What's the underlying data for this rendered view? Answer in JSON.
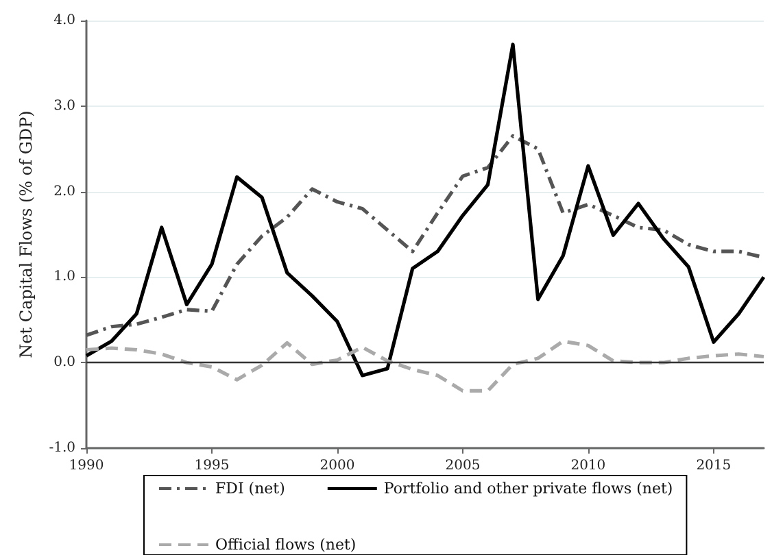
{
  "chart_data": {
    "type": "line",
    "ylabel": "Net Capital Flows (% of GDP)",
    "x": [
      1990,
      1991,
      1992,
      1993,
      1994,
      1995,
      1996,
      1997,
      1998,
      1999,
      2000,
      2001,
      2002,
      2003,
      2004,
      2005,
      2006,
      2007,
      2008,
      2009,
      2010,
      2011,
      2012,
      2013,
      2014,
      2015,
      2016,
      2017
    ],
    "series": [
      {
        "name": "FDI (net)",
        "color": "#555555",
        "line_style": "dashdot",
        "values": [
          0.32,
          0.42,
          0.45,
          0.53,
          0.62,
          0.6,
          1.15,
          1.48,
          1.7,
          2.03,
          1.88,
          1.8,
          1.55,
          1.3,
          1.75,
          2.18,
          2.28,
          2.65,
          2.5,
          1.75,
          1.85,
          1.72,
          1.58,
          1.55,
          1.38,
          1.3,
          1.3,
          1.23
        ]
      },
      {
        "name": "Portfolio and other private flows (net)",
        "color": "#000000",
        "line_style": "solid",
        "values": [
          0.08,
          0.25,
          0.57,
          1.58,
          0.68,
          1.15,
          2.17,
          1.93,
          1.05,
          0.78,
          0.48,
          -0.15,
          -0.07,
          1.1,
          1.3,
          1.72,
          2.08,
          3.72,
          0.74,
          1.25,
          2.3,
          1.49,
          1.86,
          1.45,
          1.12,
          0.24,
          0.57,
          1.0
        ]
      },
      {
        "name": "Official flows (net)",
        "color": "#aaaaaa",
        "line_style": "dashed",
        "values": [
          0.15,
          0.17,
          0.15,
          0.1,
          0.0,
          -0.05,
          -0.2,
          -0.03,
          0.23,
          -0.02,
          0.03,
          0.18,
          0.02,
          -0.08,
          -0.15,
          -0.33,
          -0.33,
          -0.02,
          0.05,
          0.25,
          0.2,
          0.02,
          0.0,
          0.0,
          0.05,
          0.08,
          0.1,
          0.07
        ]
      }
    ],
    "xlim": [
      1990,
      2017
    ],
    "xticks": [
      1990,
      1995,
      2000,
      2005,
      2010,
      2015
    ],
    "ylim": [
      -1,
      4
    ],
    "yticks": [
      {
        "value": -1,
        "label": "-1.0"
      },
      {
        "value": 0,
        "label": "0.0"
      },
      {
        "value": 1,
        "label": "1.0"
      },
      {
        "value": 2,
        "label": "2.0"
      },
      {
        "value": 3,
        "label": "3.0"
      },
      {
        "value": 4,
        "label": "4.0"
      }
    ],
    "ref_lines": [
      {
        "axis": "y",
        "value": 0,
        "color": "#333333"
      }
    ],
    "grid": "y",
    "legend": "bottom",
    "marker": "none"
  }
}
